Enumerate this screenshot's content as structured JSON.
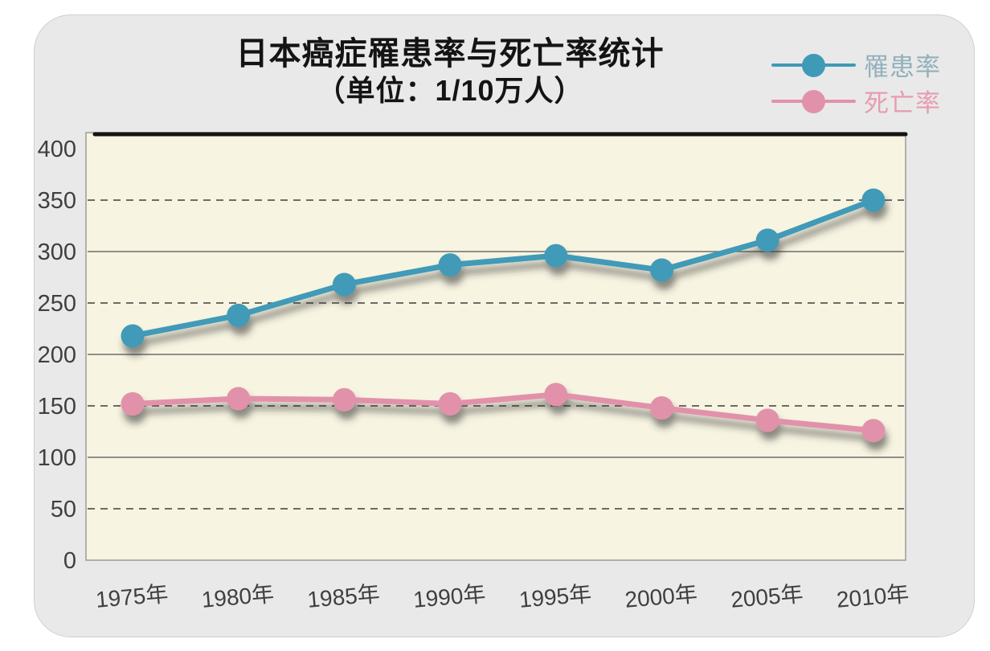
{
  "page": {
    "background": "#ffffff",
    "panel_bg": "#e9e9e9"
  },
  "title": {
    "line1": "日本癌症罹患率与死亡率统计",
    "line2": "（单位：1/10万人）"
  },
  "legend": [
    {
      "label": "罹患率",
      "marker_color": "#3f9ab8",
      "text_color": "#92b0bc"
    },
    {
      "label": "死亡率",
      "marker_color": "#e291ab",
      "text_color": "#e89cb0"
    }
  ],
  "chart_data": {
    "type": "line",
    "title": "日本癌症罹患率与死亡率统计",
    "subtitle": "（单位：1/10万人）",
    "categories": [
      "1975年",
      "1980年",
      "1985年",
      "1990年",
      "1995年",
      "2000年",
      "2005年",
      "2010年"
    ],
    "series": [
      {
        "name": "罹患率",
        "color": "#3f9ab8",
        "values": [
          218,
          238,
          268,
          287,
          296,
          282,
          311,
          350
        ]
      },
      {
        "name": "死亡率",
        "color": "#e291ab",
        "values": [
          152,
          157,
          156,
          152,
          161,
          148,
          136,
          126
        ]
      }
    ],
    "ylim": [
      0,
      400
    ],
    "ytick_step": 50,
    "grid": "solid lines at 100/200/300, dashed lines at 50/150/250/350",
    "plot_bg": "#f7f4e1",
    "legend_position": "top-right",
    "style": "hand-drawn look, drop shadows under lines and points, x labels slightly rotated"
  }
}
